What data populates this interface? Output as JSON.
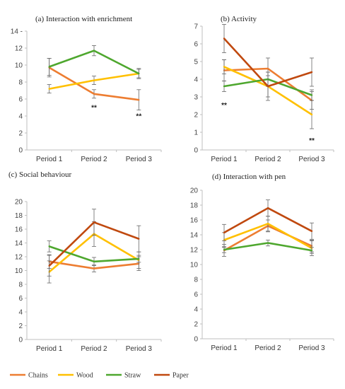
{
  "colors": {
    "Chains": "#ed7d31",
    "Wood": "#ffc000",
    "Straw": "#4ea72e",
    "Paper": "#c0490f"
  },
  "legend": [
    "Chains",
    "Wood",
    "Straw",
    "Paper"
  ],
  "chart_data": [
    {
      "type": "line",
      "title": "(a) Interaction with enrichment",
      "categories": [
        "Period 1",
        "Period 2",
        "Period 3"
      ],
      "ylim": [
        0,
        14
      ],
      "ystep": 2,
      "ytick_labels": [
        "0",
        "2",
        "4",
        "6",
        "8",
        "10",
        "12",
        "14 -"
      ],
      "series": [
        {
          "name": "Chains",
          "values": [
            9.7,
            6.6,
            5.9
          ],
          "errors": [
            1.1,
            0.5,
            1.2
          ]
        },
        {
          "name": "Wood",
          "values": [
            7.2,
            8.2,
            9.0
          ],
          "errors": [
            0.5,
            0.5,
            0.5
          ]
        },
        {
          "name": "Straw",
          "values": [
            9.8,
            11.7,
            9.0
          ],
          "errors": [
            1.0,
            0.6,
            0.6
          ]
        }
      ],
      "annotations": [
        {
          "category": "Period 2",
          "y": 4.7,
          "text": "**"
        },
        {
          "category": "Period 3",
          "y": 3.7,
          "text": "**"
        }
      ]
    },
    {
      "type": "line",
      "title": "(b) Activity",
      "categories": [
        "Period 1",
        "Period 2",
        "Period 3"
      ],
      "ylim": [
        0,
        7
      ],
      "ystep": 1,
      "ytick_labels": [
        "0",
        "1",
        "2",
        "3",
        "4",
        "5",
        "6",
        "7"
      ],
      "series": [
        {
          "name": "Chains",
          "values": [
            4.5,
            4.6,
            2.8
          ],
          "errors": [
            0.6,
            0.6,
            0.5
          ]
        },
        {
          "name": "Wood",
          "values": [
            4.7,
            3.6,
            2.0
          ],
          "errors": [
            0.4,
            0.6,
            0.8
          ]
        },
        {
          "name": "Straw",
          "values": [
            3.6,
            4.0,
            3.1
          ],
          "errors": [
            0.3,
            0.4,
            0.3
          ]
        },
        {
          "name": "Paper",
          "values": [
            6.3,
            3.6,
            4.4
          ],
          "errors": [
            0.8,
            0.8,
            0.8
          ]
        }
      ],
      "annotations": [
        {
          "category": "Period 1",
          "y": 2.4,
          "text": "**"
        },
        {
          "category": "Period 3",
          "y": 0.4,
          "text": "**"
        }
      ]
    },
    {
      "type": "line",
      "title": "(c) Social behaviour",
      "categories": [
        "Period 1",
        "Period 2",
        "Period 3"
      ],
      "ylim": [
        0,
        20
      ],
      "ystep": 2,
      "ytick_labels": [
        "0",
        "2",
        "4",
        "6",
        "8",
        "10",
        "12",
        "14",
        "16",
        "18",
        "20"
      ],
      "series": [
        {
          "name": "Chains",
          "values": [
            11.3,
            10.3,
            11.0
          ],
          "errors": [
            1.0,
            0.5,
            1.0
          ]
        },
        {
          "name": "Wood",
          "values": [
            9.8,
            15.3,
            11.5
          ],
          "errors": [
            1.6,
            1.8,
            1.2
          ]
        },
        {
          "name": "Straw",
          "values": [
            13.5,
            11.3,
            11.7
          ],
          "errors": [
            0.8,
            0.6,
            0.5
          ]
        },
        {
          "name": "Paper",
          "values": [
            10.7,
            17.0,
            14.6
          ],
          "errors": [
            1.5,
            1.9,
            1.9
          ]
        }
      ],
      "annotations": []
    },
    {
      "type": "line",
      "title": "(d) Interaction with pen",
      "categories": [
        "Period 1",
        "Period 2",
        "Period 3"
      ],
      "ylim": [
        0,
        20
      ],
      "ystep": 2,
      "ytick_labels": [
        "0",
        "2",
        "4",
        "6",
        "8",
        "10",
        "12",
        "14",
        "16",
        "18",
        "20"
      ],
      "series": [
        {
          "name": "Chains",
          "values": [
            11.9,
            15.2,
            12.5
          ],
          "errors": [
            0.8,
            0.8,
            0.8
          ]
        },
        {
          "name": "Wood",
          "values": [
            13.3,
            15.5,
            12.2
          ],
          "errors": [
            1.0,
            1.0,
            1.0
          ]
        },
        {
          "name": "Straw",
          "values": [
            12.0,
            12.9,
            11.9
          ],
          "errors": [
            0.4,
            0.4,
            0.4
          ]
        },
        {
          "name": "Paper",
          "values": [
            14.3,
            17.6,
            14.5
          ],
          "errors": [
            1.1,
            1.1,
            1.1
          ]
        }
      ],
      "annotations": []
    }
  ]
}
